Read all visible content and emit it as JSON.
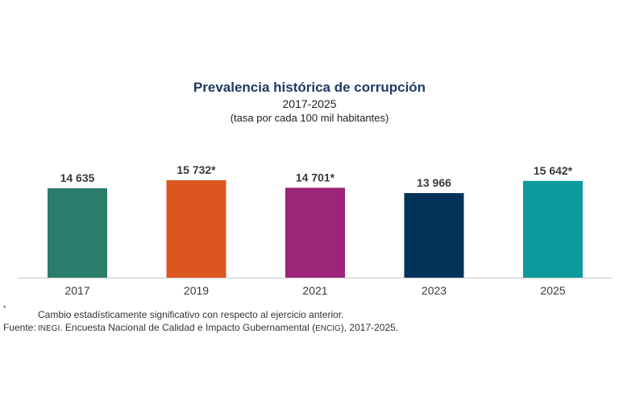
{
  "title": "Prevalencia histórica de corrupción",
  "subtitle": "2017-2025",
  "unit_label": "(tasa por cada 100 mil habitantes)",
  "chart_data": {
    "type": "bar",
    "categories": [
      "2017",
      "2019",
      "2021",
      "2023",
      "2025"
    ],
    "values": [
      14635,
      15732,
      14701,
      13966,
      15642
    ],
    "value_labels": [
      "14 635",
      "15 732*",
      "14 701*",
      "13 966",
      "15 642*"
    ],
    "colors": [
      "#2a7d68",
      "#dc5620",
      "#9c2479",
      "#003358",
      "#0c9a9d"
    ],
    "ylim": [
      0,
      16500
    ],
    "grid": false,
    "legend": "none"
  },
  "footnotes": {
    "asterisk": "*",
    "significance": "Cambio estadísticamente significativo con respecto al ejercicio anterior.",
    "source_label": "Fuente:",
    "source_org": "INEGI",
    "source_text_1": ". Encuesta Nacional de Calidad e Impacto Gubernamental (",
    "source_abbr": "ENCIG",
    "source_text_2": "), 2017-2025."
  }
}
